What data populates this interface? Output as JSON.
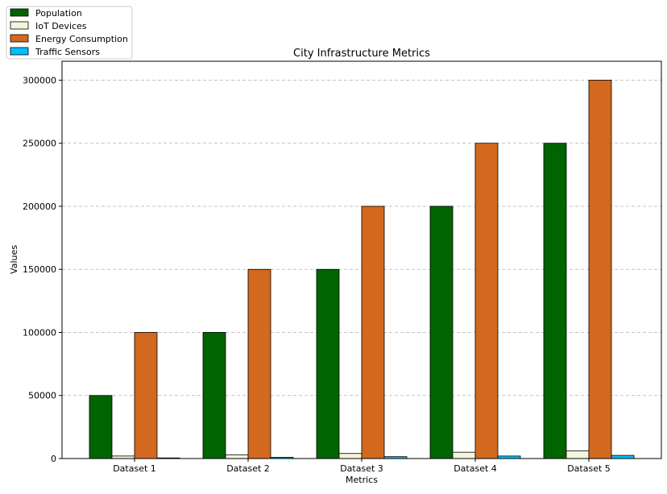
{
  "chart_data": {
    "type": "bar",
    "title": "City Infrastructure Metrics",
    "xlabel": "Metrics",
    "ylabel": "Values",
    "categories": [
      "Dataset 1",
      "Dataset 2",
      "Dataset 3",
      "Dataset 4",
      "Dataset 5"
    ],
    "ylim": [
      0,
      315000
    ],
    "yticks": [
      0,
      50000,
      100000,
      150000,
      200000,
      250000,
      300000
    ],
    "ytick_labels": [
      "0",
      "50000",
      "100000",
      "150000",
      "200000",
      "250000",
      "300000"
    ],
    "grid": "y-dashed",
    "legend_position": "top-left-outside",
    "series": [
      {
        "name": "Population",
        "color": "#006400",
        "values": [
          50000,
          100000,
          150000,
          200000,
          250000
        ]
      },
      {
        "name": "IoT Devices",
        "color": "#F5F5DC",
        "values": [
          2000,
          3000,
          4000,
          5000,
          6000
        ]
      },
      {
        "name": "Energy Consumption",
        "color": "#D2691E",
        "values": [
          100000,
          150000,
          200000,
          250000,
          300000
        ]
      },
      {
        "name": "Traffic Sensors",
        "color": "#00BFFF",
        "values": [
          500,
          1000,
          1500,
          2000,
          2500
        ]
      }
    ]
  }
}
